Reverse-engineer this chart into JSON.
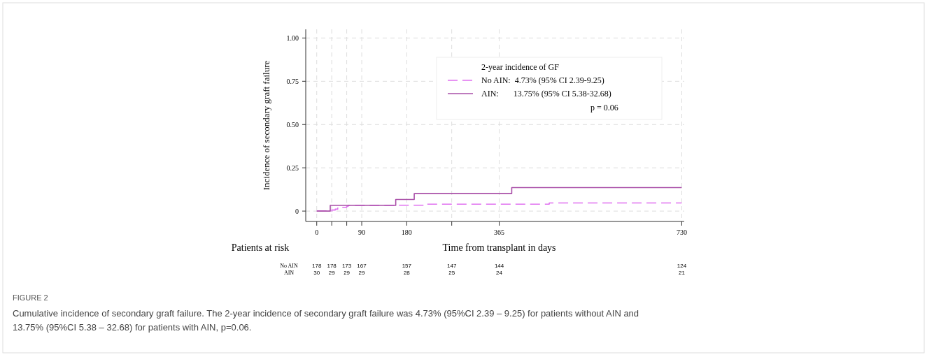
{
  "chart_data": {
    "type": "step",
    "title": "FIGURE 2",
    "subtitle": "Cumulative incidence of secondary graft failure. The 2-year incidence of secondary graft failure was 4.73% (95%CI 2.39 – 9.25) for patients without AIN and 13.75% (95%CI 5.38 – 32.68) for patients with AIN, p=0.06.",
    "xlabel": "Time from transplant in days",
    "ylabel": "Incidence of  secondary graft failure",
    "legend_title": "2-year incidence of GF",
    "series": [
      {
        "name": "No AIN:  4.73% (95% CI 2.39-9.25)",
        "color": "#e070f0",
        "line_style": "dashed",
        "x": [
          0,
          28,
          30,
          37,
          42,
          50,
          60,
          63,
          215,
          465,
          730
        ],
        "values": [
          0,
          0,
          0.006,
          0.011,
          0.017,
          0.022,
          0.028,
          0.034,
          0.04,
          0.047,
          0.047
        ]
      },
      {
        "name": "AIN:       13.75% (95% CI 5.38-32.68)",
        "color": "#a94fa8",
        "line_style": "solid",
        "x": [
          0,
          27,
          158,
          195,
          390,
          730
        ],
        "values": [
          0,
          0.033,
          0.067,
          0.101,
          0.136,
          0.136
        ]
      }
    ],
    "xlim": [
      -22,
      735
    ],
    "ylim": [
      -0.06,
      1.05
    ],
    "xticks": [
      0,
      {
        "value": 30,
        "label": null
      },
      {
        "value": 60,
        "label": null
      },
      90,
      180,
      {
        "value": 270,
        "label": null
      },
      365,
      730
    ],
    "yticks": [
      0,
      {
        "value": 0.25,
        "label": "0.25"
      },
      {
        "value": 0.5,
        "label": "0.50"
      },
      {
        "value": 0.75,
        "label": "0.75"
      },
      {
        "value": 1,
        "label": "1.00"
      }
    ],
    "grid": true,
    "legend": "top right",
    "annotations": [
      "p = 0.06",
      "Patients at risk",
      "No AIN",
      "178 178 173 167 157 147 144 124",
      "AIN",
      "30 29 29 29 28 25 24 21"
    ]
  }
}
